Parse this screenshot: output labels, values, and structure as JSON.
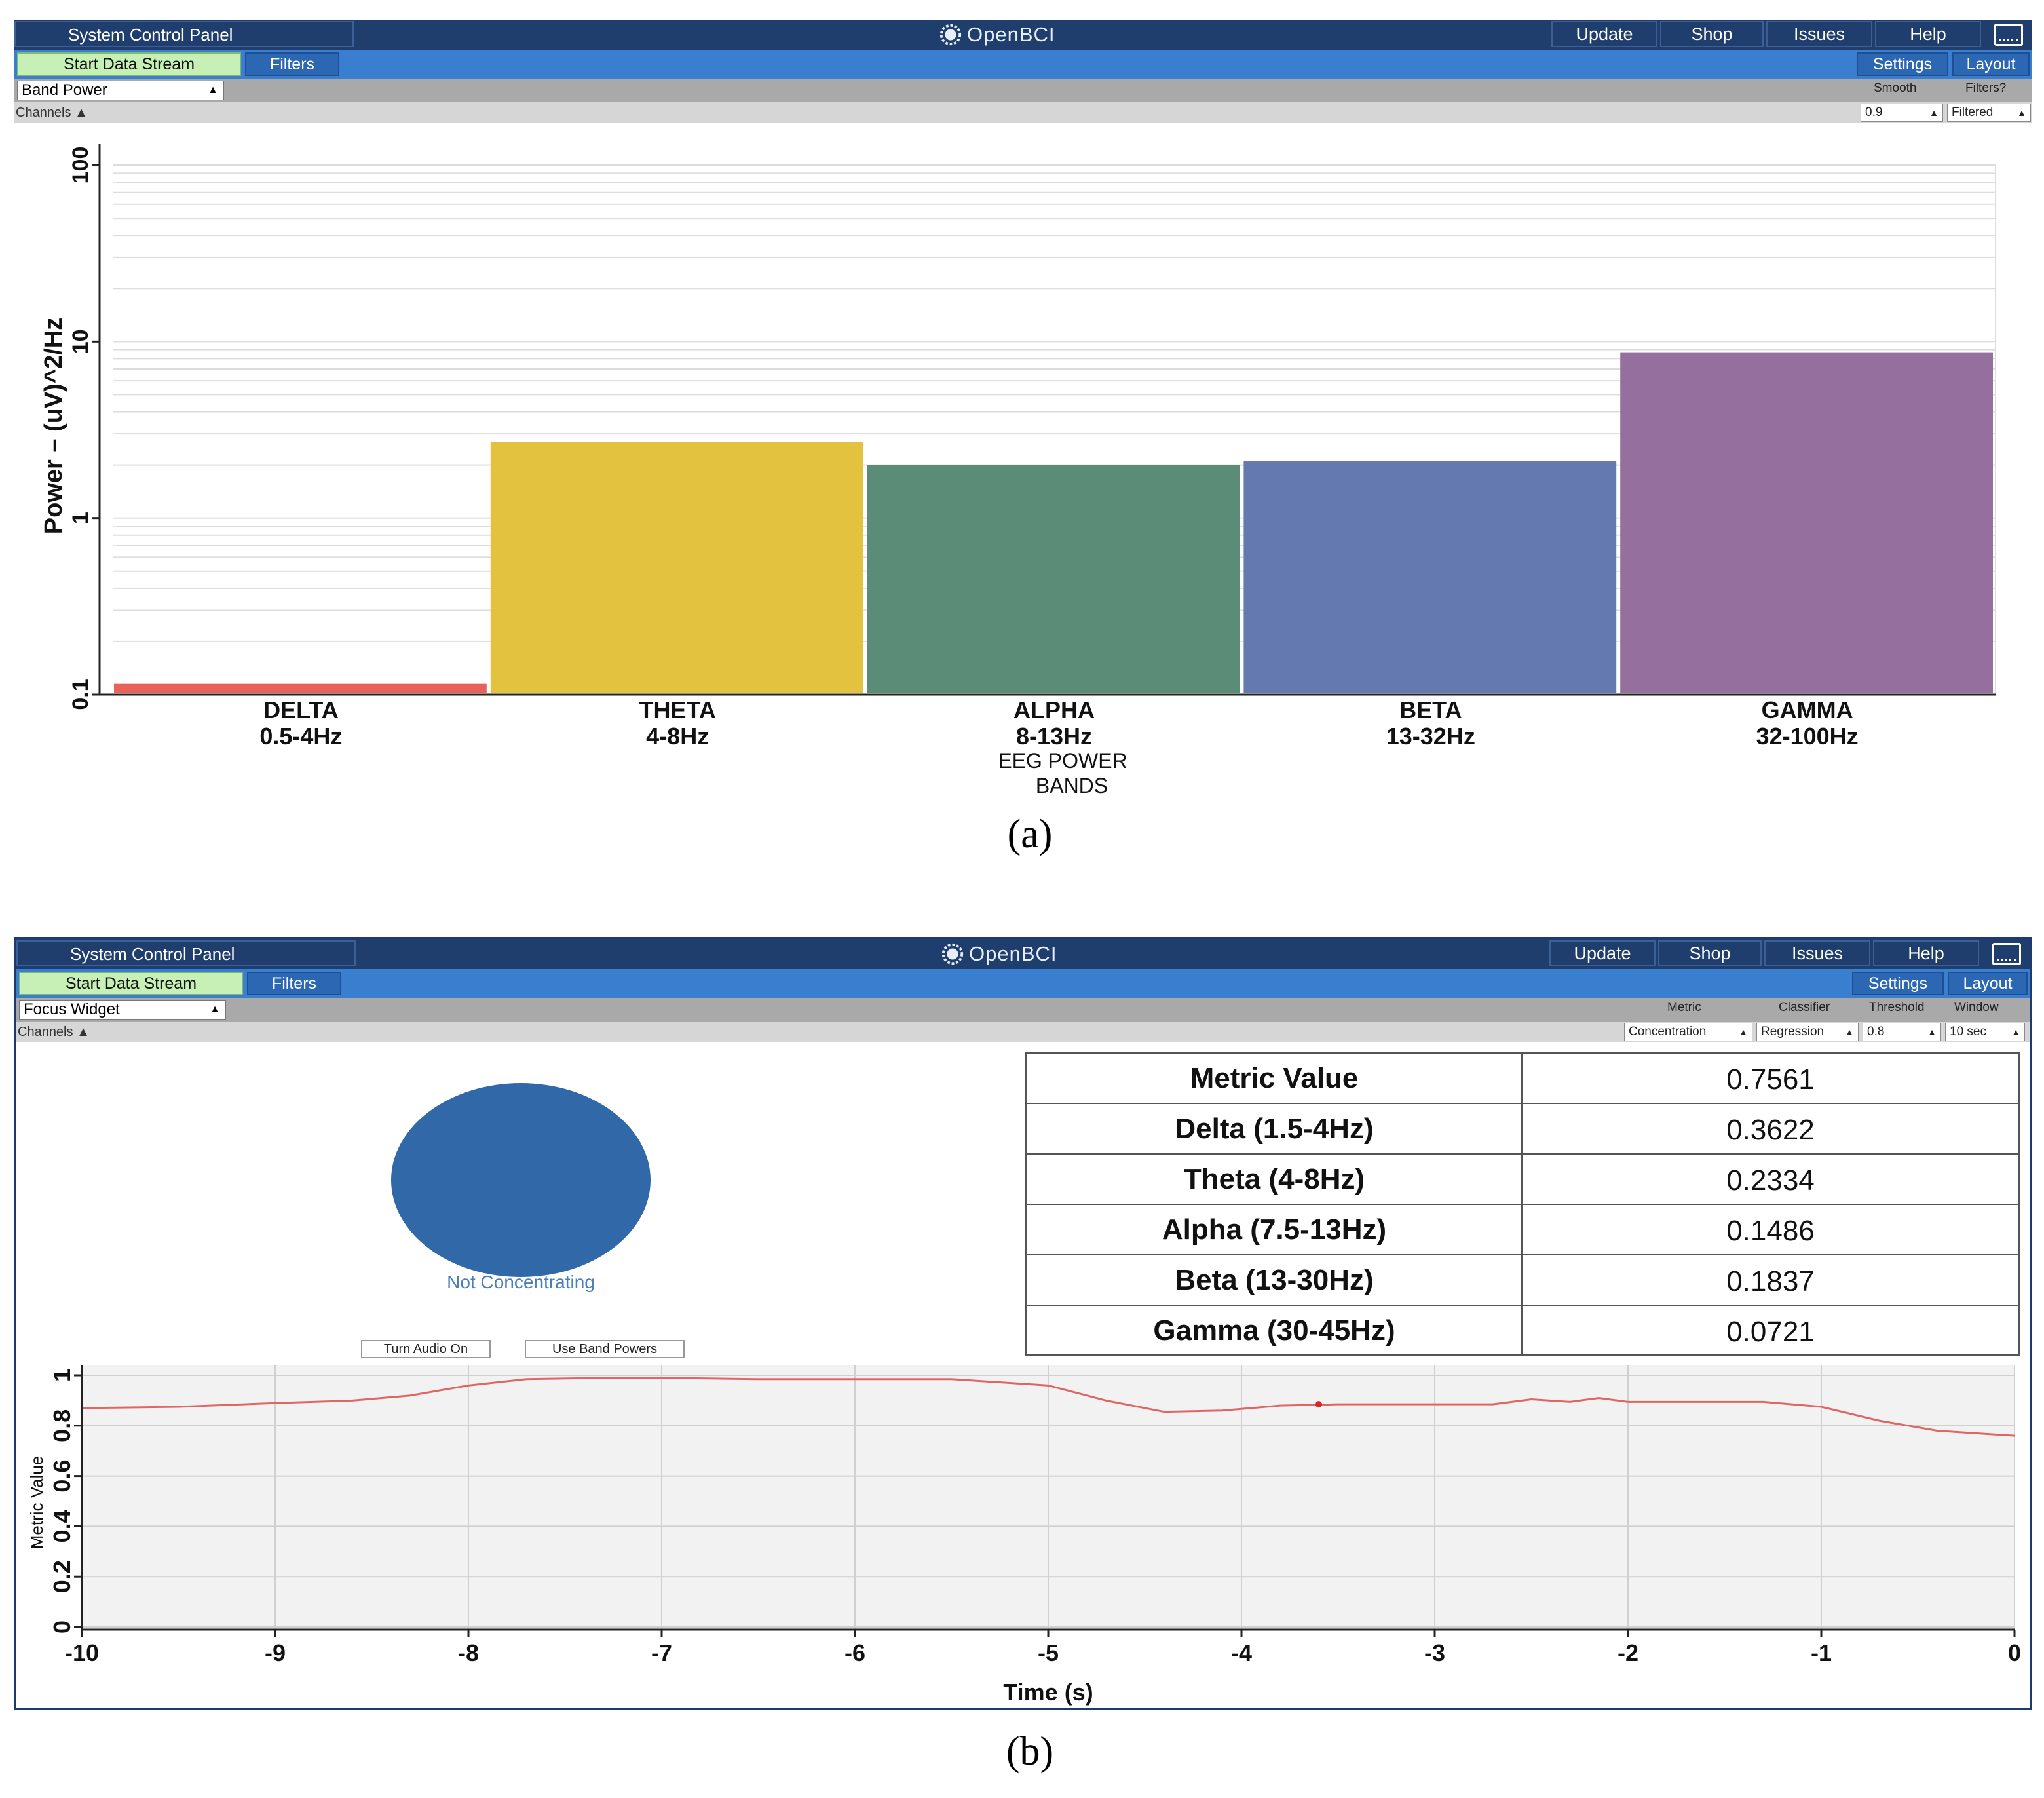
{
  "panel_a": {
    "title": "System Control Panel",
    "logo_text": "OpenBCI",
    "nav": [
      "Update",
      "Shop",
      "Issues",
      "Help"
    ],
    "start_label": "Start Data Stream",
    "filters_label": "Filters",
    "settings_label": "Settings",
    "layout_label": "Layout",
    "widget_name": "Band Power",
    "channels_label": "Channels",
    "smooth_label": "Smooth",
    "smooth_value": "0.9",
    "filters_opt_label": "Filters?",
    "filters_opt_value": "Filtered",
    "caption": "(a)"
  },
  "panel_b": {
    "title": "System Control Panel",
    "logo_text": "OpenBCI",
    "nav": [
      "Update",
      "Shop",
      "Issues",
      "Help"
    ],
    "start_label": "Start Data Stream",
    "filters_label": "Filters",
    "settings_label": "Settings",
    "layout_label": "Layout",
    "widget_name": "Focus Widget",
    "channels_label": "Channels",
    "metric_label": "Metric",
    "metric_value": "Concentration",
    "classifier_label": "Classifier",
    "classifier_value": "Regression",
    "threshold_label": "Threshold",
    "threshold_value": "0.8",
    "window_label": "Window",
    "window_value": "10 sec",
    "status_text": "Not Concentrating",
    "audio_button": "Turn Audio On",
    "bandpower_button": "Use Band Powers",
    "table": [
      {
        "name": "Metric Value",
        "value": "0.7561"
      },
      {
        "name": "Delta (1.5-4Hz)",
        "value": "0.3622"
      },
      {
        "name": "Theta (4-8Hz)",
        "value": "0.2334"
      },
      {
        "name": "Alpha (7.5-13Hz)",
        "value": "0.1486"
      },
      {
        "name": "Beta (13-30Hz)",
        "value": "0.1837"
      },
      {
        "name": "Gamma (30-45Hz)",
        "value": "0.0721"
      }
    ],
    "caption": "(b)"
  },
  "colors": {
    "titlebar": "#1f3d6d",
    "toolbar": "#3a7fcf",
    "delta": "#e8625a",
    "theta": "#e3c240",
    "alpha": "#5a8c78",
    "beta": "#6479b0",
    "gamma": "#956f9e",
    "focus_circle": "#3168a8",
    "trace": "#e06666"
  },
  "chart_data": [
    {
      "type": "bar",
      "ylabel": "Power – (uV)^2/Hz",
      "xlabel": "EEG POWER BANDS",
      "yscale": "log",
      "ylim": [
        0.1,
        100
      ],
      "yticks": [
        "0.1",
        "1",
        "10",
        "100"
      ],
      "categories": [
        {
          "name": "DELTA",
          "range": "0.5-4Hz"
        },
        {
          "name": "THETA",
          "range": "4-8Hz"
        },
        {
          "name": "ALPHA",
          "range": "8-13Hz"
        },
        {
          "name": "BETA",
          "range": "13-32Hz"
        },
        {
          "name": "GAMMA",
          "range": "32-100Hz"
        }
      ],
      "values": [
        0.115,
        2.7,
        2.0,
        2.1,
        8.7
      ],
      "grid": true
    },
    {
      "type": "line",
      "xlabel": "Time (s)",
      "ylabel": "Metric Value",
      "xlim": [
        -10,
        0
      ],
      "ylim": [
        0,
        1
      ],
      "xticks": [
        "-10",
        "-9",
        "-8",
        "-7",
        "-6",
        "-5",
        "-4",
        "-3",
        "-2",
        "-1",
        "0"
      ],
      "yticks": [
        "0",
        "0.2",
        "0.4",
        "0.6",
        "0.8",
        "1"
      ],
      "x": [
        -10,
        -9.5,
        -9,
        -8.6,
        -8.3,
        -8,
        -7.7,
        -7.3,
        -7,
        -6.5,
        -6,
        -5.5,
        -5,
        -4.7,
        -4.4,
        -4.1,
        -3.8,
        -3.5,
        -3,
        -2.7,
        -2.5,
        -2.3,
        -2.15,
        -2,
        -1.5,
        -1.3,
        -1,
        -0.7,
        -0.4,
        0
      ],
      "y": [
        0.87,
        0.875,
        0.89,
        0.9,
        0.92,
        0.96,
        0.985,
        0.99,
        0.99,
        0.985,
        0.985,
        0.985,
        0.96,
        0.9,
        0.855,
        0.86,
        0.88,
        0.885,
        0.885,
        0.885,
        0.905,
        0.895,
        0.91,
        0.895,
        0.895,
        0.895,
        0.875,
        0.82,
        0.78,
        0.76
      ],
      "marker": {
        "x": -3.6,
        "y": 0.885
      },
      "grid": true
    }
  ]
}
